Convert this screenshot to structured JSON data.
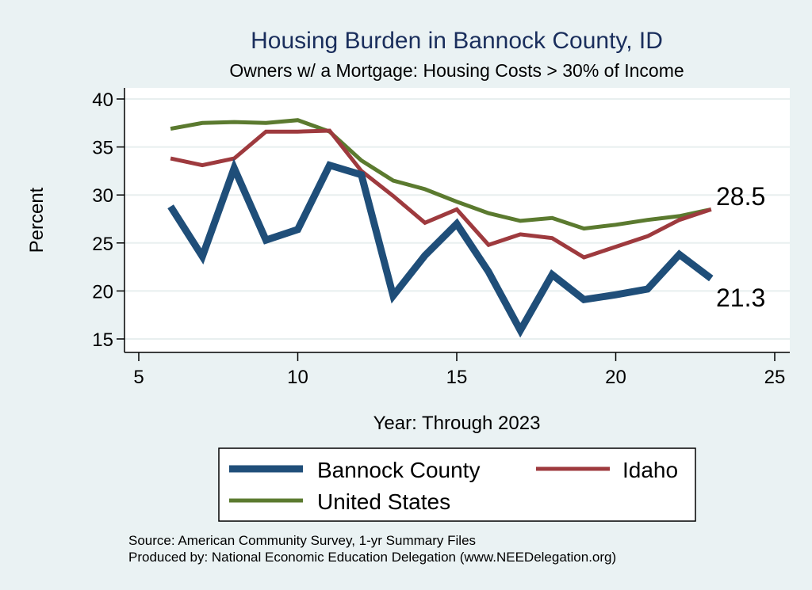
{
  "chart_data": {
    "type": "line",
    "title": "Housing Burden in Bannock County, ID",
    "subtitle": "Owners w/ a Mortgage: Housing Costs > 30% of Income",
    "xlabel": "Year: Through 2023",
    "ylabel": "Percent",
    "xlim": [
      5,
      25
    ],
    "ylim": [
      14,
      41
    ],
    "x_ticks": [
      5,
      10,
      15,
      20,
      25
    ],
    "y_ticks": [
      15,
      20,
      25,
      30,
      35,
      40
    ],
    "grid": true,
    "legend_position": "bottom",
    "x": [
      6,
      7,
      8,
      9,
      10,
      11,
      12,
      13,
      14,
      15,
      16,
      17,
      18,
      19,
      20,
      21,
      22,
      23
    ],
    "series": [
      {
        "name": "Bannock County",
        "color": "#1f4e79",
        "values": [
          28.8,
          23.6,
          32.8,
          25.3,
          26.4,
          33.1,
          32.1,
          19.5,
          23.7,
          27.0,
          22.0,
          15.9,
          21.7,
          19.1,
          19.6,
          20.2,
          23.8,
          21.3
        ]
      },
      {
        "name": "Idaho",
        "color": "#9e3a3e",
        "values": [
          33.8,
          33.1,
          33.8,
          36.6,
          36.6,
          36.7,
          32.5,
          29.9,
          27.1,
          28.5,
          24.8,
          25.9,
          25.5,
          23.5,
          24.6,
          25.7,
          27.4,
          28.5
        ]
      },
      {
        "name": "United States",
        "color": "#5b7a2f",
        "values": [
          36.9,
          37.5,
          37.6,
          37.5,
          37.8,
          36.6,
          33.6,
          31.5,
          30.6,
          29.3,
          28.1,
          27.3,
          27.6,
          26.5,
          26.9,
          27.4,
          27.8,
          28.5
        ]
      }
    ],
    "end_labels": [
      "28.5",
      "21.3"
    ]
  },
  "legend": {
    "items": [
      "Bannock County",
      "Idaho",
      "United States"
    ]
  },
  "source": {
    "line1": "Source: American Community Survey, 1-yr Summary Files",
    "line2": "Produced by: National Economic Education Delegation (www.NEEDelegation.org)"
  }
}
